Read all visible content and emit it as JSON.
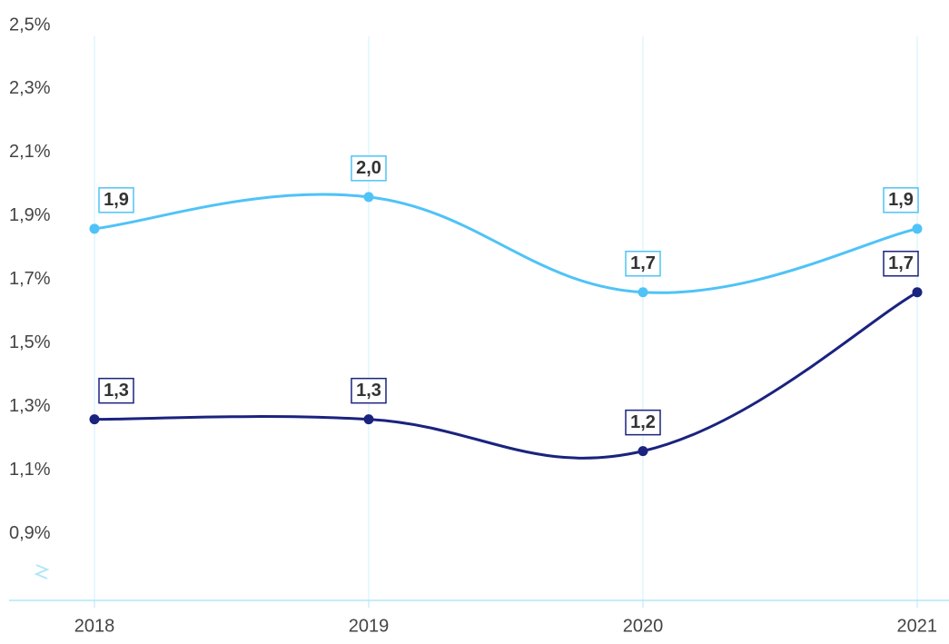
{
  "chart_data": {
    "type": "line",
    "categories": [
      "2018",
      "2019",
      "2020",
      "2021"
    ],
    "series": [
      {
        "color": "#4fc3f7",
        "values": [
          1.86,
          1.96,
          1.66,
          1.86
        ],
        "value_labels": [
          "1,9",
          "2,0",
          "1,7",
          "1,9"
        ]
      },
      {
        "color": "#1a237e",
        "values": [
          1.26,
          1.26,
          1.16,
          1.66
        ],
        "value_labels": [
          "1,3",
          "1,3",
          "1,2",
          "1,7"
        ]
      }
    ],
    "ylim": [
      0.69,
      2.5
    ],
    "yticks": [
      {
        "value": 0.9,
        "label": "0,9%"
      },
      {
        "value": 1.1,
        "label": "1,1%"
      },
      {
        "value": 1.3,
        "label": "1,3%"
      },
      {
        "value": 1.5,
        "label": "1,5%"
      },
      {
        "value": 1.7,
        "label": "1,7%"
      },
      {
        "value": 1.9,
        "label": "1,9%"
      },
      {
        "value": 2.1,
        "label": "2,1%"
      },
      {
        "value": 2.3,
        "label": "2,3%"
      },
      {
        "value": 2.5,
        "label": "2,5%"
      }
    ],
    "grid": true
  }
}
